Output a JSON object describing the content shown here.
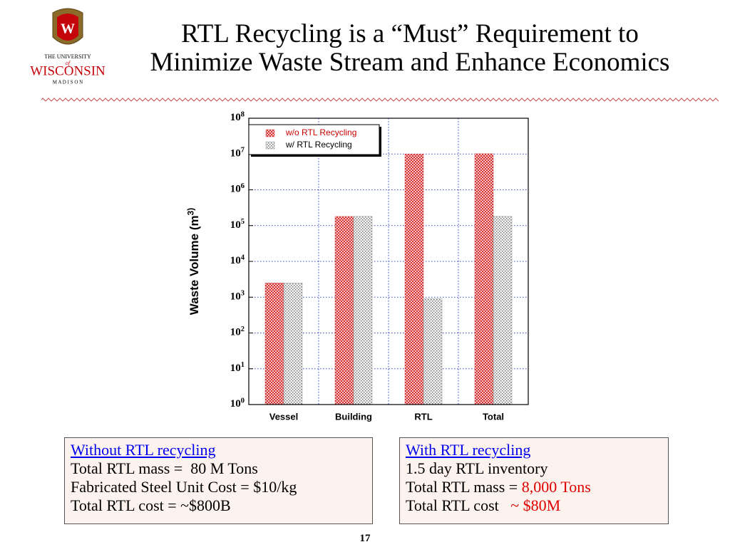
{
  "header": {
    "title_lines": [
      "RTL Recycling is a “Must” Requirement to",
      "Minimize Waste Stream and Enhance Economics"
    ],
    "logo": {
      "top": "THE UNIVERSITY",
      "of": "of",
      "name": "WISCONSIN",
      "bottom": "M A D I S O N"
    }
  },
  "chart_data": {
    "type": "bar",
    "log_scale": true,
    "grid": true,
    "legend": "upper left",
    "ylabel": "Waste Volume (m^3)",
    "categories": [
      "Vessel",
      "Building",
      "RTL",
      "Total"
    ],
    "series": [
      {
        "name": "w/o RTL Recycling",
        "color": "#e05050",
        "values": [
          2500,
          180000,
          10000000,
          10200000
        ]
      },
      {
        "name": "w/ RTL Recycling",
        "color": "#909090",
        "values": [
          2500,
          180000,
          900,
          180000
        ]
      }
    ],
    "ylim": [
      1,
      100000000
    ],
    "yticks": [
      {
        "value": 1,
        "label": "10^0"
      },
      {
        "value": 10,
        "label": "10^1"
      },
      {
        "value": 100,
        "label": "10^2"
      },
      {
        "value": 1000,
        "label": "10^3"
      },
      {
        "value": 10000,
        "label": "10^4"
      },
      {
        "value": 100000,
        "label": "10^5"
      },
      {
        "value": 1000000,
        "label": "10^6"
      },
      {
        "value": 10000000,
        "label": "10^7"
      },
      {
        "value": 100000000,
        "label": "10^8"
      }
    ]
  },
  "boxes": [
    {
      "head": "Without RTL recycling",
      "lines": [
        {
          "text": "Total RTL mass =  80 M Tons"
        },
        {
          "text": "Fabricated Steel Unit Cost = $10/kg"
        },
        {
          "text": "Total RTL cost = ~$800B"
        }
      ]
    },
    {
      "head": "With RTL recycling",
      "lines": [
        {
          "text": "1.5 day RTL inventory"
        },
        {
          "text": "Total RTL mass = ",
          "highlight": "8,000 Tons"
        },
        {
          "text": "Total RTL cost   ",
          "highlight": "~ $80M"
        }
      ]
    }
  ],
  "page_number": "17"
}
